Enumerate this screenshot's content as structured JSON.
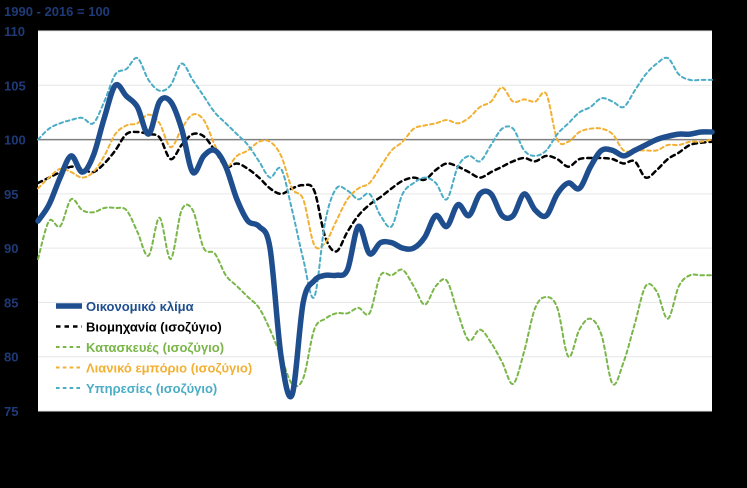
{
  "chart_data": {
    "type": "line",
    "unit_label": "1990 - 2016 = 100",
    "title": "",
    "xlabel": "",
    "ylabel": "",
    "ylim": [
      75,
      110
    ],
    "yticks": [
      75,
      80,
      85,
      90,
      95,
      100,
      105,
      110
    ],
    "reference_line": 100,
    "background": "#ffffff",
    "grid": true,
    "legend_position": "bottom-left",
    "n_periods": 62,
    "series": [
      {
        "name": "Βιομηχανία (ισοζύγιο)",
        "color": "#000000",
        "style": "dashed",
        "width": 2.5,
        "values": [
          96.0,
          96.5,
          97.0,
          97.5,
          97.3,
          97.0,
          97.8,
          99.0,
          100.5,
          100.7,
          100.5,
          100.2,
          98.2,
          99.5,
          100.5,
          100.3,
          99.0,
          97.5,
          97.8,
          97.3,
          96.5,
          95.5,
          95.0,
          95.5,
          95.8,
          95.3,
          91.0,
          89.7,
          91.5,
          93.0,
          94.0,
          94.7,
          95.5,
          96.2,
          96.5,
          96.3,
          97.2,
          97.8,
          97.5,
          97.0,
          96.5,
          97.0,
          97.5,
          98.0,
          98.3,
          98.0,
          98.5,
          98.2,
          97.5,
          98.2,
          98.3,
          98.3,
          98.2,
          97.8,
          98.0,
          96.5,
          97.2,
          98.2,
          98.8,
          99.5,
          99.7,
          99.8
        ]
      },
      {
        "name": "Κατασκευές (ισοζύγιο)",
        "color": "#7ab648",
        "style": "dashed",
        "width": 2.0,
        "values": [
          89.0,
          92.5,
          92.0,
          94.5,
          93.5,
          93.3,
          93.7,
          93.7,
          93.5,
          91.5,
          89.3,
          92.8,
          89.0,
          93.5,
          93.5,
          90.0,
          89.5,
          87.5,
          86.5,
          85.5,
          84.5,
          82.5,
          80.0,
          77.5,
          78.0,
          82.5,
          83.5,
          84.0,
          84.0,
          84.5,
          84.0,
          87.5,
          87.5,
          88.0,
          86.5,
          84.8,
          86.5,
          87.0,
          84.0,
          81.5,
          82.5,
          81.3,
          79.5,
          77.5,
          80.5,
          84.5,
          85.5,
          84.5,
          80.0,
          82.5,
          83.5,
          82.0,
          77.5,
          79.5,
          83.0,
          86.5,
          86.0,
          83.5,
          86.5,
          87.5,
          87.5,
          87.5
        ]
      },
      {
        "name": "Λιανικό εμπόριο (ισοζύγιο)",
        "color": "#f2b134",
        "style": "dashed",
        "width": 2.0,
        "values": [
          95.5,
          96.5,
          97.3,
          97.0,
          96.5,
          97.0,
          98.5,
          100.5,
          101.3,
          101.5,
          102.3,
          101.5,
          99.3,
          101.0,
          102.3,
          101.8,
          99.5,
          97.5,
          98.5,
          99.0,
          99.8,
          99.8,
          98.5,
          95.5,
          94.5,
          90.3,
          90.5,
          92.5,
          94.5,
          95.5,
          96.0,
          97.5,
          99.0,
          99.8,
          101.0,
          101.3,
          101.5,
          101.8,
          101.5,
          102.0,
          103.0,
          103.5,
          104.8,
          103.5,
          103.7,
          103.5,
          104.2,
          100.0,
          99.8,
          100.7,
          101.0,
          101.0,
          100.5,
          99.0,
          99.0,
          99.0,
          99.0,
          99.5,
          99.5,
          99.8,
          99.8,
          100.0
        ]
      },
      {
        "name": "Υπηρεσίες (ισοζύγιο)",
        "color": "#4bacc6",
        "style": "dashed",
        "width": 2.0,
        "values": [
          100.0,
          101.0,
          101.5,
          101.8,
          102.0,
          101.5,
          103.5,
          106.0,
          106.5,
          107.5,
          105.5,
          104.5,
          105.0,
          107.0,
          105.5,
          104.0,
          102.5,
          101.5,
          100.5,
          99.5,
          98.0,
          96.5,
          97.3,
          93.5,
          89.0,
          85.5,
          92.5,
          95.5,
          95.3,
          94.5,
          95.0,
          93.0,
          92.0,
          95.0,
          96.0,
          96.5,
          96.0,
          94.5,
          97.5,
          98.5,
          98.0,
          99.5,
          101.0,
          101.0,
          99.0,
          98.5,
          99.0,
          100.5,
          101.5,
          102.5,
          103.0,
          103.8,
          103.5,
          103.0,
          104.5,
          106.0,
          107.0,
          107.5,
          106.0,
          105.5,
          105.5,
          105.5
        ]
      },
      {
        "name": "Οικονομικό κλίμα",
        "color": "#1f4e8f",
        "style": "solid",
        "width": 5.5,
        "values": [
          92.5,
          94.0,
          96.5,
          98.5,
          97.0,
          98.5,
          102.0,
          105.0,
          104.0,
          103.0,
          100.5,
          103.5,
          103.5,
          101.0,
          97.0,
          98.5,
          99.0,
          97.5,
          94.5,
          92.5,
          92.0,
          90.0,
          80.0,
          76.5,
          85.0,
          87.0,
          87.5,
          87.5,
          88.0,
          92.0,
          89.5,
          90.5,
          90.5,
          90.0,
          90.0,
          91.0,
          93.0,
          92.0,
          94.0,
          93.0,
          95.0,
          95.0,
          93.0,
          93.0,
          95.0,
          93.5,
          93.0,
          95.0,
          96.0,
          95.5,
          97.5,
          99.0,
          99.0,
          98.5,
          99.0,
          99.5,
          100.0,
          100.3,
          100.5,
          100.5,
          100.7,
          100.7
        ]
      }
    ],
    "legend_order": [
      "Οικονομικό κλίμα",
      "Βιομηχανία (ισοζύγιο)",
      "Κατασκευές (ισοζύγιο)",
      "Λιανικό εμπόριο (ισοζύγιο)",
      "Υπηρεσίες (ισοζύγιο)"
    ]
  }
}
